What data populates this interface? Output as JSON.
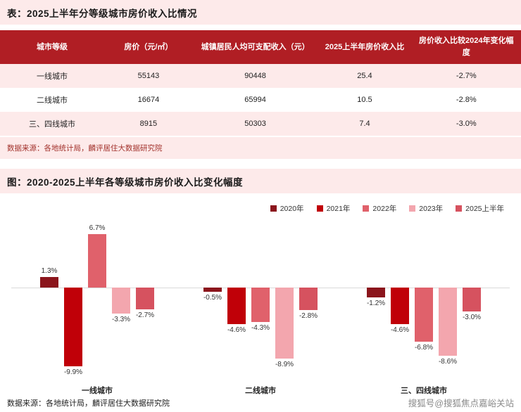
{
  "colors": {
    "accent": "#b01e24",
    "band_pink": "#fdeaea",
    "source_text": "#a2322c",
    "baseline": "#d9d9d9",
    "watermark_text": "#8a8a8a"
  },
  "table_section": {
    "title": "表：2025上半年分等级城市房价收入比情况",
    "columns": [
      "城市等级",
      "房价（元/㎡）",
      "城镇居民人均可支配收入（元）",
      "2025上半年房价收入比",
      "房价收入比较2024年变化幅度"
    ],
    "rows": [
      [
        "一线城市",
        "55143",
        "90448",
        "25.4",
        "-2.7%"
      ],
      [
        "二线城市",
        "16674",
        "65994",
        "10.5",
        "-2.8%"
      ],
      [
        "三、四线城市",
        "8915",
        "50303",
        "7.4",
        "-3.0%"
      ]
    ],
    "source": "数据来源：各地统计局，麟评居住大数据研究院"
  },
  "chart_section": {
    "title": "图：2020-2025上半年各等级城市房价收入比变化幅度",
    "source": "数据来源：各地统计局，麟评居住大数据研究院"
  },
  "chart_data": {
    "type": "bar",
    "categories": [
      "一线城市",
      "二线城市",
      "三、四线城市"
    ],
    "series": [
      {
        "name": "2020年",
        "color": "#8b151c",
        "values": [
          1.3,
          -0.5,
          -1.2
        ]
      },
      {
        "name": "2021年",
        "color": "#c00008",
        "values": [
          -9.9,
          -4.6,
          -4.6
        ]
      },
      {
        "name": "2022年",
        "color": "#e0616b",
        "values": [
          6.7,
          -4.3,
          -6.8
        ]
      },
      {
        "name": "2023年",
        "color": "#f3a6ae",
        "values": [
          -3.3,
          -8.9,
          -8.6
        ]
      },
      {
        "name": "2025上半年",
        "color": "#d6525f",
        "values": [
          -2.7,
          -2.8,
          -3.0
        ]
      }
    ],
    "value_suffix": "%",
    "ylim": [
      -11.6,
      8.3
    ],
    "grid": false,
    "legend_position": "top-right",
    "title": "2020-2025上半年各等级城市房价收入比变化幅度",
    "xlabel": "",
    "ylabel": ""
  },
  "watermark": "搜狐号@搜狐焦点嘉峪关站"
}
